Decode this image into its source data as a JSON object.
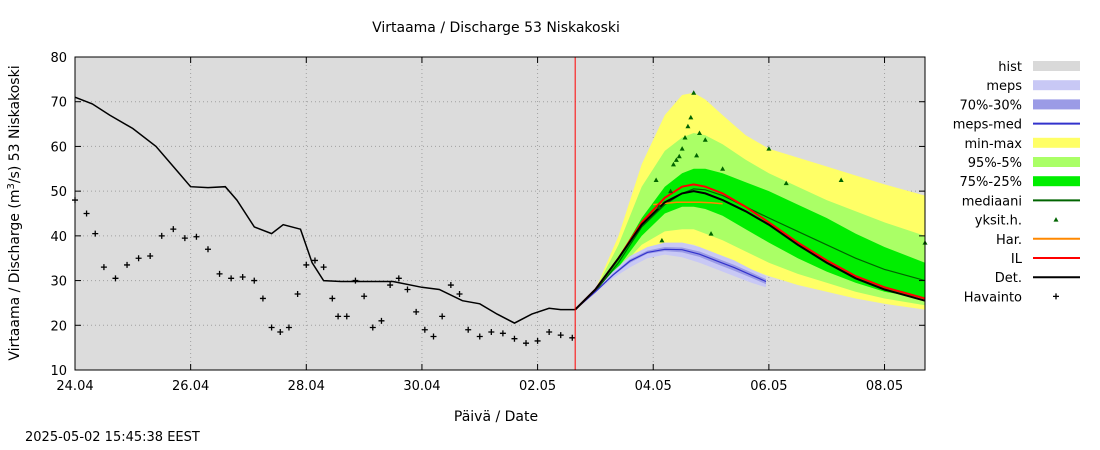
{
  "chart_data": {
    "type": "line",
    "title": "Virtaama / Discharge  53 Niskakoski",
    "xlabel": "Päivä / Date",
    "ylabel_prefix": "Virtaama / Discharge (m",
    "ylabel_sup": "3",
    "ylabel_suffix": "/s)  53 Niskakoski",
    "xlim": [
      0,
      14.7
    ],
    "ylim": [
      10,
      80
    ],
    "yticks": [
      10,
      20,
      30,
      40,
      50,
      60,
      70,
      80
    ],
    "xticks": [
      {
        "x": 0,
        "label": "24.04"
      },
      {
        "x": 2,
        "label": "26.04"
      },
      {
        "x": 4,
        "label": "28.04"
      },
      {
        "x": 6,
        "label": "30.04"
      },
      {
        "x": 8,
        "label": "02.05"
      },
      {
        "x": 10,
        "label": "04.05"
      },
      {
        "x": 12,
        "label": "06.05"
      },
      {
        "x": 14,
        "label": "08.05"
      }
    ],
    "x_unit_note": "days from 24.04",
    "current_time_x": 8.65,
    "grid": true,
    "legend_position": "right",
    "legend": [
      {
        "key": "hist",
        "label": "hist",
        "style": "band",
        "color": "#d9d9d9"
      },
      {
        "key": "meps",
        "label": "meps",
        "style": "band",
        "color": "#c8c8f5"
      },
      {
        "key": "meps7030",
        "label": "70%-30%",
        "style": "band",
        "color": "#9b9be6"
      },
      {
        "key": "mepsmed",
        "label": "meps-med",
        "style": "line",
        "color": "#3333cc"
      },
      {
        "key": "minmax",
        "label": "min-max",
        "style": "band",
        "color": "#ffff66"
      },
      {
        "key": "p95",
        "label": "95%-5%",
        "style": "band",
        "color": "#aaff66"
      },
      {
        "key": "p75",
        "label": "75%-25%",
        "style": "band",
        "color": "#00ee00"
      },
      {
        "key": "mediaani",
        "label": "mediaani",
        "style": "line",
        "color": "#006400"
      },
      {
        "key": "yksit",
        "label": "yksit.h.",
        "style": "triangle",
        "color": "#006400"
      },
      {
        "key": "har",
        "label": "Har.",
        "style": "line",
        "color": "#ff8800"
      },
      {
        "key": "il",
        "label": "IL",
        "style": "line",
        "color": "#ff0000"
      },
      {
        "key": "det",
        "label": "Det.",
        "style": "line",
        "color": "#000000"
      },
      {
        "key": "havainto",
        "label": "Havainto",
        "style": "cross",
        "color": "#000000"
      }
    ],
    "series": {
      "hist_line": {
        "x": [
          0,
          0.3,
          0.6,
          1.0,
          1.4,
          1.8,
          2.0,
          2.3,
          2.6,
          2.8,
          3.1,
          3.4,
          3.6,
          3.9,
          4.1,
          4.3,
          4.6,
          5.0,
          5.5,
          6.0,
          6.3,
          6.7,
          7.0,
          7.3,
          7.6,
          7.9,
          8.2,
          8.4,
          8.65
        ],
        "y": [
          71,
          69.5,
          67,
          64,
          60,
          54,
          51,
          50.8,
          51,
          48,
          42,
          40.5,
          42.5,
          41.5,
          34,
          30,
          29.8,
          29.8,
          29.8,
          28.5,
          28,
          25.5,
          24.8,
          22.5,
          20.5,
          22.5,
          23.8,
          23.5,
          23.5
        ]
      },
      "havainto": {
        "x": [
          0,
          0.2,
          0.35,
          0.5,
          0.7,
          0.9,
          1.1,
          1.3,
          1.5,
          1.7,
          1.9,
          2.1,
          2.3,
          2.5,
          2.7,
          2.9,
          3.1,
          3.25,
          3.4,
          3.55,
          3.7,
          3.85,
          4.0,
          4.15,
          4.3,
          4.45,
          4.55,
          4.7,
          4.85,
          5.0,
          5.15,
          5.3,
          5.45,
          5.6,
          5.75,
          5.9,
          6.05,
          6.2,
          6.35,
          6.5,
          6.65,
          6.8,
          7.0,
          7.2,
          7.4,
          7.6,
          7.8,
          8.0,
          8.2,
          8.4,
          8.6
        ],
        "y": [
          48,
          45,
          40.5,
          33,
          30.5,
          33.5,
          35,
          35.5,
          40,
          41.5,
          39.5,
          39.8,
          37,
          31.5,
          30.5,
          30.8,
          30,
          26,
          19.5,
          18.5,
          19.5,
          27,
          33.5,
          34.5,
          33,
          26,
          22,
          22,
          30,
          26.5,
          19.5,
          21,
          29,
          30.5,
          28,
          23,
          19,
          17.5,
          22,
          29,
          27,
          19,
          17.5,
          18.5,
          18.2,
          17,
          16,
          16.5,
          18.5,
          17.8,
          17.2
        ]
      },
      "minmax": {
        "x": [
          8.65,
          9.0,
          9.4,
          9.8,
          10.2,
          10.5,
          10.7,
          10.9,
          11.2,
          11.6,
          12.0,
          12.5,
          13.0,
          13.5,
          14.0,
          14.7
        ],
        "upper": [
          23.5,
          28,
          40,
          56,
          67,
          71.5,
          72,
          70.5,
          67,
          62.5,
          59.5,
          57.5,
          55.5,
          53.5,
          51.5,
          49
        ],
        "lower": [
          23.5,
          27.5,
          32,
          36,
          38,
          38.5,
          38,
          37,
          35.5,
          33,
          31,
          29,
          27.5,
          26,
          24.8,
          23.5
        ]
      },
      "p95": {
        "x": [
          8.65,
          9.0,
          9.4,
          9.8,
          10.2,
          10.5,
          10.7,
          10.9,
          11.2,
          11.6,
          12.0,
          12.5,
          13.0,
          13.5,
          14.0,
          14.7
        ],
        "upper": [
          23.5,
          28,
          38,
          51,
          59,
          62,
          63,
          62.5,
          60.5,
          57,
          54,
          51,
          48,
          45.5,
          43,
          40
        ],
        "lower": [
          23.5,
          27.5,
          32.5,
          38,
          41,
          41.5,
          41.5,
          40.5,
          39,
          36.5,
          34,
          31.5,
          29.5,
          27.5,
          26,
          24.5
        ]
      },
      "p75": {
        "x": [
          8.65,
          9.0,
          9.4,
          9.8,
          10.2,
          10.5,
          10.7,
          10.9,
          11.2,
          11.6,
          12.0,
          12.5,
          13.0,
          13.5,
          14.0,
          14.7
        ],
        "upper": [
          23.5,
          27.8,
          35,
          44,
          51,
          54,
          55,
          55,
          54,
          52,
          50,
          47,
          44,
          40.5,
          37.5,
          34
        ],
        "lower": [
          23.5,
          27.5,
          33,
          40,
          45,
          46.5,
          46.5,
          46,
          44.5,
          41.5,
          38.5,
          35,
          32,
          29.5,
          27.5,
          26
        ]
      },
      "mediaani": {
        "x": [
          8.65,
          9.0,
          9.4,
          9.8,
          10.2,
          10.5,
          10.7,
          10.9,
          11.2,
          11.6,
          12.0,
          12.5,
          13.0,
          13.5,
          14.0,
          14.7
        ],
        "y": [
          23.5,
          27.6,
          34,
          42,
          47,
          49.5,
          50.5,
          50.3,
          49,
          46.5,
          44,
          41,
          38,
          35,
          32.5,
          30
        ]
      },
      "meps": {
        "x": [
          8.65,
          9.0,
          9.3,
          9.6,
          9.9,
          10.2,
          10.5,
          10.8,
          11.1,
          11.4,
          11.7,
          11.95
        ],
        "upper": [
          23.5,
          27.8,
          32,
          35.5,
          37.5,
          38.5,
          38.5,
          37.5,
          36,
          34.5,
          32.5,
          31
        ],
        "lower": [
          23.5,
          27.2,
          30.5,
          33,
          35,
          35.8,
          35.2,
          34,
          32.5,
          31,
          29.5,
          28.5
        ]
      },
      "meps7030": {
        "x": [
          8.65,
          9.0,
          9.3,
          9.6,
          9.9,
          10.2,
          10.5,
          10.8,
          11.1,
          11.4,
          11.7,
          11.95
        ],
        "upper": [
          23.5,
          27.6,
          31.5,
          34.8,
          36.7,
          37.5,
          37.4,
          36.5,
          35,
          33.5,
          31.8,
          30.3
        ],
        "lower": [
          23.5,
          27.4,
          31,
          34,
          36,
          36.6,
          36.3,
          35.3,
          33.7,
          32.2,
          30.6,
          29.2
        ]
      },
      "mepsmed": {
        "x": [
          8.65,
          9.0,
          9.3,
          9.6,
          9.9,
          10.2,
          10.5,
          10.8,
          11.1,
          11.4,
          11.7,
          11.95
        ],
        "y": [
          23.5,
          27.5,
          31.2,
          34.4,
          36.3,
          37,
          36.9,
          35.9,
          34.4,
          32.9,
          31.2,
          29.8
        ]
      },
      "har": {
        "x": [
          10.0,
          10.4,
          10.8,
          11.0,
          11.2
        ],
        "y": [
          47,
          47.5,
          47.5,
          47.4,
          47.2
        ]
      },
      "il": {
        "x": [
          8.65,
          9.0,
          9.4,
          9.8,
          10.2,
          10.5,
          10.7,
          10.9,
          11.2,
          11.6,
          12.0,
          12.5,
          13.0,
          13.5,
          14.0,
          14.7
        ],
        "y": [
          23.5,
          28,
          35,
          43,
          48.5,
          51,
          51.5,
          51,
          49.5,
          46.5,
          43,
          38.5,
          34.5,
          31,
          28.5,
          26
        ]
      },
      "det": {
        "x": [
          8.65,
          9.0,
          9.4,
          9.8,
          10.2,
          10.5,
          10.7,
          10.9,
          11.2,
          11.6,
          12.0,
          12.5,
          13.0,
          13.5,
          14.0,
          14.7
        ],
        "y": [
          23.5,
          28,
          35,
          42.5,
          47.5,
          49.5,
          50,
          49.5,
          48,
          45.5,
          42.5,
          38,
          34,
          30.5,
          28,
          25.5
        ]
      },
      "yksit": {
        "x": [
          9.75,
          9.8,
          9.85,
          9.9,
          9.95,
          10.0,
          10.05,
          10.05,
          10.1,
          10.15,
          10.2,
          10.25,
          10.3,
          10.35,
          10.4,
          10.45,
          10.5,
          10.55,
          10.6,
          10.6,
          10.65,
          10.7,
          10.75,
          10.8,
          10.85,
          10.9,
          11.0,
          11.1,
          11.6,
          12.0,
          12.3,
          13.25,
          14.7
        ],
        "y": [
          39,
          42.5,
          44,
          45.5,
          46,
          46.5,
          47,
          49,
          45,
          43,
          42,
          41,
          39,
          38,
          37,
          38,
          36.5,
          35,
          34,
          33,
          32,
          31,
          30,
          29.5,
          29,
          28.5,
          28,
          27.5,
          27,
          26.5,
          26,
          25.5,
          25
        ]
      }
    },
    "yksit_scattered": {
      "x": [
        10.05,
        10.1,
        10.15,
        10.3,
        10.35,
        10.4,
        10.45,
        10.5,
        10.55,
        10.6,
        10.65,
        10.7,
        10.75,
        10.8,
        10.9,
        11.0,
        11.2,
        12.0,
        12.3,
        13.25,
        14.7
      ],
      "y": [
        52.5,
        46.5,
        39,
        50,
        56,
        57,
        57.8,
        59.5,
        62,
        64.5,
        66.5,
        72,
        58,
        63,
        61.5,
        40.5,
        55,
        59.5,
        51.8,
        52.5,
        38.5
      ]
    }
  },
  "footer": {
    "timestamp": "2025-05-02 15:45:38 EEST"
  }
}
